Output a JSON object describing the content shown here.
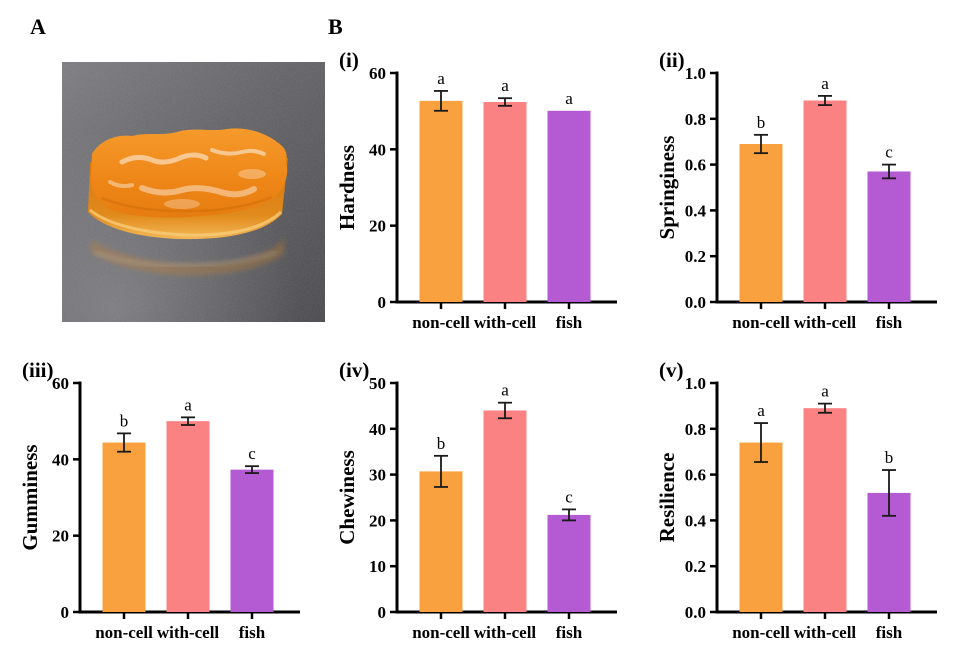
{
  "figure": {
    "panel_a_label": "A",
    "panel_b_label": "B"
  },
  "colors": {
    "bar_non_cell": "#F9A13F",
    "bar_with_cell": "#FA8282",
    "bar_fish": "#B45BD3",
    "axis": "#000000",
    "error_bar": "#1a1a1a"
  },
  "categories": [
    "non-cell",
    "with-cell",
    "fish"
  ],
  "chart_data": [
    {
      "type": "bar",
      "panel_label": "(i)",
      "ylabel": "Hardness",
      "categories": [
        "non-cell",
        "with-cell",
        "fish"
      ],
      "values": [
        52.7,
        52.4,
        50.1
      ],
      "errors": [
        2.6,
        1.0,
        0
      ],
      "sig_letters": [
        "a",
        "a",
        "a"
      ],
      "ylim": [
        0,
        60
      ],
      "yticks": [
        0,
        20,
        40,
        60
      ],
      "ytick_labels": [
        "0",
        "20",
        "40",
        "60"
      ]
    },
    {
      "type": "bar",
      "panel_label": "(ii)",
      "ylabel": "Springiness",
      "categories": [
        "non-cell",
        "with-cell",
        "fish"
      ],
      "values": [
        0.69,
        0.88,
        0.57
      ],
      "errors": [
        0.04,
        0.02,
        0.03
      ],
      "sig_letters": [
        "b",
        "a",
        "c"
      ],
      "ylim": [
        0,
        1.0
      ],
      "yticks": [
        0,
        0.2,
        0.4,
        0.6,
        0.8,
        1.0
      ],
      "ytick_labels": [
        "0.0",
        "0.2",
        "0.4",
        "0.6",
        "0.8",
        "1.0"
      ]
    },
    {
      "type": "bar",
      "panel_label": "(iii)",
      "ylabel": "Gumminess",
      "categories": [
        "non-cell",
        "with-cell",
        "fish"
      ],
      "values": [
        44.4,
        50.0,
        37.3
      ],
      "errors": [
        2.4,
        1.0,
        0.9
      ],
      "sig_letters": [
        "b",
        "a",
        "c"
      ],
      "ylim": [
        0,
        60
      ],
      "yticks": [
        0,
        20,
        40,
        60
      ],
      "ytick_labels": [
        "0",
        "20",
        "40",
        "60"
      ]
    },
    {
      "type": "bar",
      "panel_label": "(iv)",
      "ylabel": "Chewiness",
      "categories": [
        "non-cell",
        "with-cell",
        "fish"
      ],
      "values": [
        30.7,
        44.0,
        21.2
      ],
      "errors": [
        3.4,
        1.7,
        1.2
      ],
      "sig_letters": [
        "b",
        "a",
        "c"
      ],
      "ylim": [
        0,
        50
      ],
      "yticks": [
        0,
        10,
        20,
        30,
        40,
        50
      ],
      "ytick_labels": [
        "0",
        "10",
        "20",
        "30",
        "40",
        "50"
      ]
    },
    {
      "type": "bar",
      "panel_label": "(v)",
      "ylabel": "Resilience",
      "categories": [
        "non-cell",
        "with-cell",
        "fish"
      ],
      "values": [
        0.74,
        0.89,
        0.52
      ],
      "errors": [
        0.085,
        0.02,
        0.1
      ],
      "sig_letters": [
        "a",
        "a",
        "b"
      ],
      "ylim": [
        0,
        1.0
      ],
      "yticks": [
        0,
        0.2,
        0.4,
        0.6,
        0.8,
        1.0
      ],
      "ytick_labels": [
        "0.0",
        "0.2",
        "0.4",
        "0.6",
        "0.8",
        "1.0"
      ]
    }
  ]
}
